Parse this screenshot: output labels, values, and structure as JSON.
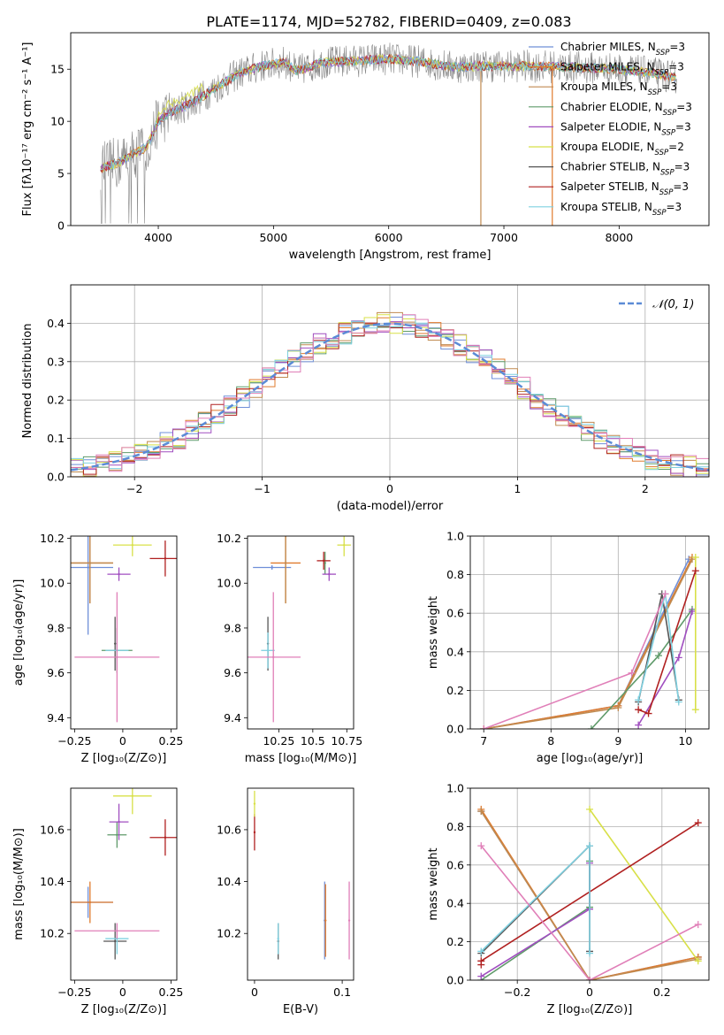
{
  "figure": {
    "title": "PLATE=1174, MJD=52782, FIBERID=0409, z=0.083"
  },
  "colors": {
    "chabrier_miles": "#6f8fd8",
    "salpeter_miles": "#e07b2e",
    "kroupa_miles": "#c08a50",
    "chabrier_elodie": "#5f9a6a",
    "salpeter_elodie": "#a04ec0",
    "kroupa_elodie": "#d8e048",
    "chabrier_stelib": "#555555",
    "salpeter_stelib": "#b02020",
    "kroupa_stelib": "#7fd0e0",
    "gaussian": "#5b8bd6",
    "pink": "#e07fb8"
  },
  "legend_labels": [
    {
      "key": "chabrier_miles",
      "text": "Chabrier MILES, N",
      "sub": "SSP",
      "suffix": "=3"
    },
    {
      "key": "salpeter_miles",
      "text": "Salpeter MILES, N",
      "sub": "SSP",
      "suffix": "=3"
    },
    {
      "key": "kroupa_miles",
      "text": "Kroupa MILES, N",
      "sub": "SSP",
      "suffix": "=3"
    },
    {
      "key": "chabrier_elodie",
      "text": "Chabrier ELODIE, N",
      "sub": "SSP",
      "suffix": "=3"
    },
    {
      "key": "salpeter_elodie",
      "text": "Salpeter ELODIE, N",
      "sub": "SSP",
      "suffix": "=3"
    },
    {
      "key": "kroupa_elodie",
      "text": "Kroupa ELODIE, N",
      "sub": "SSP",
      "suffix": "=2"
    },
    {
      "key": "chabrier_stelib",
      "text": "Chabrier STELIB, N",
      "sub": "SSP",
      "suffix": "=3"
    },
    {
      "key": "salpeter_stelib",
      "text": "Salpeter STELIB, N",
      "sub": "SSP",
      "suffix": "=3"
    },
    {
      "key": "kroupa_stelib",
      "text": "Kroupa STELIB, N",
      "sub": "SSP",
      "suffix": "=3"
    }
  ],
  "chart_data": [
    {
      "id": "spectrum",
      "type": "line",
      "xlabel": "wavelength [Angstrom, rest frame]",
      "ylabel": "Flux [fλ10⁻¹⁷ erg cm⁻² s⁻¹ A⁻¹]",
      "xlim": [
        3240,
        8780
      ],
      "ylim": [
        0,
        18.5
      ],
      "xticks": [
        4000,
        5000,
        6000,
        7000,
        8000
      ],
      "yticks": [
        0,
        5,
        10,
        15
      ],
      "continuum": [
        [
          3500,
          5.5
        ],
        [
          3650,
          6.0
        ],
        [
          3800,
          7.0
        ],
        [
          3900,
          7.5
        ],
        [
          4000,
          10.0
        ],
        [
          4100,
          10.8
        ],
        [
          4300,
          11.8
        ],
        [
          4500,
          13.2
        ],
        [
          4700,
          14.6
        ],
        [
          4900,
          15.3
        ],
        [
          5100,
          15.7
        ],
        [
          5200,
          14.8
        ],
        [
          5400,
          15.6
        ],
        [
          5700,
          15.8
        ],
        [
          6000,
          16.0
        ],
        [
          6300,
          15.7
        ],
        [
          6560,
          15.2
        ],
        [
          6800,
          15.3
        ],
        [
          7200,
          15.3
        ],
        [
          7600,
          15.2
        ],
        [
          8000,
          15.0
        ],
        [
          8300,
          14.6
        ],
        [
          8500,
          14.2
        ]
      ]
    },
    {
      "id": "residuals",
      "type": "step-histogram",
      "xlabel": "(data-model)/error",
      "ylabel": "Normed distribution",
      "xlim": [
        -2.5,
        2.5
      ],
      "ylim": [
        0,
        0.5
      ],
      "xticks": [
        -2,
        -1,
        0,
        1,
        2
      ],
      "yticks": [
        0.0,
        0.1,
        0.2,
        0.3,
        0.4
      ],
      "legend": "𝒩(0, 1)",
      "gaussian": {
        "mu": 0,
        "sigma": 1
      }
    },
    {
      "id": "age_vs_Z",
      "type": "errorbar",
      "xlabel": "Z [log₁₀(Z/Z⊙)]",
      "ylabel": "age  [log₁₀(age/yr)]",
      "xlim": [
        -0.27,
        0.28
      ],
      "ylim": [
        9.35,
        10.21
      ],
      "xticks": [
        -0.25,
        0.0,
        0.25
      ],
      "yticks": [
        9.4,
        9.6,
        9.8,
        10.0,
        10.2
      ],
      "points": [
        {
          "c": "chabrier_miles",
          "x": -0.18,
          "y": 10.07,
          "xerr": 0.13,
          "yerr": 0.3
        },
        {
          "c": "salpeter_miles",
          "x": -0.17,
          "y": 10.09,
          "xerr": 0.12,
          "yerr": 0.18
        },
        {
          "c": "kroupa_miles",
          "x": -0.17,
          "y": 10.09,
          "xerr": 0.12,
          "yerr": 0.18
        },
        {
          "c": "chabrier_elodie",
          "x": -0.03,
          "y": 9.7,
          "xerr": 0.08,
          "yerr": 0.1
        },
        {
          "c": "salpeter_elodie",
          "x": -0.02,
          "y": 10.04,
          "xerr": 0.06,
          "yerr": 0.03
        },
        {
          "c": "kroupa_elodie",
          "x": 0.05,
          "y": 10.17,
          "xerr": 0.1,
          "yerr": 0.05
        },
        {
          "c": "chabrier_stelib",
          "x": -0.04,
          "y": 9.73,
          "xerr": 0.0,
          "yerr": 0.12
        },
        {
          "c": "salpeter_stelib",
          "x": 0.22,
          "y": 10.11,
          "xerr": 0.08,
          "yerr": 0.08
        },
        {
          "c": "kroupa_stelib",
          "x": -0.03,
          "y": 9.7,
          "xerr": 0.06,
          "yerr": 0.08
        },
        {
          "c": "pink",
          "x": -0.03,
          "y": 9.67,
          "xerr": 0.22,
          "yerr": 0.29
        }
      ]
    },
    {
      "id": "age_vs_mass",
      "type": "errorbar",
      "xlabel": "mass [log₁₀(M/M⊙)]",
      "ylabel": "",
      "xlim": [
        10.02,
        10.8
      ],
      "ylim": [
        9.35,
        10.21
      ],
      "xticks": [
        10.25,
        10.5,
        10.75
      ],
      "yticks": [
        9.4,
        9.6,
        9.8,
        10.0,
        10.2
      ],
      "points": [
        {
          "c": "chabrier_miles",
          "x": 10.2,
          "y": 10.07,
          "xerr": 0.14,
          "yerr": 0.01
        },
        {
          "c": "salpeter_miles",
          "x": 10.3,
          "y": 10.09,
          "xerr": 0.11,
          "yerr": 0.18
        },
        {
          "c": "kroupa_miles",
          "x": 10.3,
          "y": 10.09,
          "xerr": 0.0,
          "yerr": 0.18
        },
        {
          "c": "chabrier_elodie",
          "x": 10.59,
          "y": 10.09,
          "xerr": 0.0,
          "yerr": 0.05
        },
        {
          "c": "salpeter_elodie",
          "x": 10.62,
          "y": 10.04,
          "xerr": 0.05,
          "yerr": 0.03
        },
        {
          "c": "kroupa_elodie",
          "x": 10.73,
          "y": 10.17,
          "xerr": 0.05,
          "yerr": 0.05
        },
        {
          "c": "salpeter_stelib",
          "x": 10.58,
          "y": 10.1,
          "xerr": 0.05,
          "yerr": 0.04
        },
        {
          "c": "chabrier_stelib",
          "x": 10.17,
          "y": 9.73,
          "xerr": 0.0,
          "yerr": 0.12
        },
        {
          "c": "kroupa_stelib",
          "x": 10.17,
          "y": 9.7,
          "xerr": 0.05,
          "yerr": 0.08
        },
        {
          "c": "pink",
          "x": 10.21,
          "y": 9.67,
          "xerr": 0.2,
          "yerr": 0.29
        }
      ]
    },
    {
      "id": "weight_vs_age",
      "type": "line",
      "xlabel": "age  [log₁₀(age/yr)]",
      "ylabel": "mass weight",
      "xlim": [
        6.8,
        10.35
      ],
      "ylim": [
        0,
        1.0
      ],
      "xticks": [
        7,
        8,
        9,
        10
      ],
      "yticks": [
        0.0,
        0.2,
        0.4,
        0.6,
        0.8,
        1.0
      ],
      "series": [
        {
          "c": "chabrier_miles",
          "points": [
            [
              7.0,
              0.0
            ],
            [
              9.0,
              0.12
            ],
            [
              10.05,
              0.88
            ]
          ]
        },
        {
          "c": "salpeter_miles",
          "points": [
            [
              7.0,
              0.0
            ],
            [
              9.0,
              0.12
            ],
            [
              10.1,
              0.89
            ]
          ]
        },
        {
          "c": "kroupa_miles",
          "points": [
            [
              7.0,
              0.0
            ],
            [
              9.0,
              0.11
            ],
            [
              10.1,
              0.88
            ]
          ]
        },
        {
          "c": "chabrier_elodie",
          "points": [
            [
              8.6,
              0.0
            ],
            [
              9.6,
              0.38
            ],
            [
              10.1,
              0.62
            ]
          ]
        },
        {
          "c": "salpeter_elodie",
          "points": [
            [
              9.3,
              0.02
            ],
            [
              9.9,
              0.37
            ],
            [
              10.1,
              0.61
            ]
          ]
        },
        {
          "c": "kroupa_elodie",
          "points": [
            [
              10.15,
              0.1
            ],
            [
              10.15,
              0.89
            ]
          ]
        },
        {
          "c": "chabrier_stelib",
          "points": [
            [
              9.3,
              0.14
            ],
            [
              9.65,
              0.7
            ],
            [
              9.9,
              0.15
            ]
          ]
        },
        {
          "c": "salpeter_stelib",
          "points": [
            [
              9.3,
              0.1
            ],
            [
              9.45,
              0.08
            ],
            [
              10.15,
              0.82
            ]
          ]
        },
        {
          "c": "kroupa_stelib",
          "points": [
            [
              9.3,
              0.15
            ],
            [
              9.7,
              0.7
            ],
            [
              9.9,
              0.14
            ]
          ]
        },
        {
          "c": "pink",
          "points": [
            [
              7.0,
              0.0
            ],
            [
              9.2,
              0.29
            ],
            [
              9.7,
              0.7
            ]
          ]
        }
      ]
    },
    {
      "id": "mass_vs_Z",
      "type": "errorbar",
      "xlabel": "Z [log₁₀(Z/Z⊙)]",
      "ylabel": "mass [log₁₀(M/M⊙)]",
      "xlim": [
        -0.27,
        0.28
      ],
      "ylim": [
        10.02,
        10.76
      ],
      "xticks": [
        -0.25,
        0.0,
        0.25
      ],
      "yticks": [
        10.2,
        10.4,
        10.6
      ],
      "points": [
        {
          "c": "chabrier_miles",
          "x": -0.18,
          "y": 10.32,
          "xerr": 0.13,
          "yerr": 0.06
        },
        {
          "c": "salpeter_miles",
          "x": -0.17,
          "y": 10.32,
          "xerr": 0.12,
          "yerr": 0.08
        },
        {
          "c": "chabrier_elodie",
          "x": -0.03,
          "y": 10.58,
          "xerr": 0.05,
          "yerr": 0.05
        },
        {
          "c": "salpeter_elodie",
          "x": -0.02,
          "y": 10.63,
          "xerr": 0.05,
          "yerr": 0.07
        },
        {
          "c": "kroupa_elodie",
          "x": 0.05,
          "y": 10.73,
          "xerr": 0.1,
          "yerr": 0.07
        },
        {
          "c": "salpeter_stelib",
          "x": 0.22,
          "y": 10.57,
          "xerr": 0.08,
          "yerr": 0.07
        },
        {
          "c": "chabrier_stelib",
          "x": -0.04,
          "y": 10.17,
          "xerr": 0.06,
          "yerr": 0.07
        },
        {
          "c": "kroupa_stelib",
          "x": -0.03,
          "y": 10.18,
          "xerr": 0.06,
          "yerr": 0.06
        },
        {
          "c": "pink",
          "x": -0.03,
          "y": 10.21,
          "xerr": 0.22,
          "yerr": 0.03
        }
      ]
    },
    {
      "id": "mass_vs_ebv",
      "type": "errorbar",
      "xlabel": "E(B-V)",
      "ylabel": "",
      "xlim": [
        -0.008,
        0.113
      ],
      "ylim": [
        10.02,
        10.76
      ],
      "xticks": [
        0.0,
        0.1
      ],
      "yticks": [
        10.2,
        10.4,
        10.6
      ],
      "points": [
        {
          "c": "salpeter_stelib",
          "x": 0.0,
          "y": 10.59,
          "xerr": 0.0,
          "yerr": 0.07
        },
        {
          "c": "kroupa_elodie",
          "x": 0.0,
          "y": 10.7,
          "xerr": 0.0,
          "yerr": 0.05
        },
        {
          "c": "chabrier_stelib",
          "x": 0.027,
          "y": 10.17,
          "xerr": 0.0,
          "yerr": 0.07
        },
        {
          "c": "kroupa_stelib",
          "x": 0.027,
          "y": 10.18,
          "xerr": 0.0,
          "yerr": 0.06
        },
        {
          "c": "chabrier_miles",
          "x": 0.08,
          "y": 10.25,
          "xerr": 0.0,
          "yerr": 0.15
        },
        {
          "c": "salpeter_miles",
          "x": 0.081,
          "y": 10.25,
          "xerr": 0.0,
          "yerr": 0.14
        },
        {
          "c": "pink",
          "x": 0.108,
          "y": 10.25,
          "xerr": 0.0,
          "yerr": 0.15
        }
      ]
    },
    {
      "id": "weight_vs_Z",
      "type": "line",
      "xlabel": "Z [log₁₀(Z/Z⊙)]",
      "ylabel": "mass weight",
      "xlim": [
        -0.33,
        0.33
      ],
      "ylim": [
        0,
        1.0
      ],
      "xticks": [
        -0.2,
        0.0,
        0.2
      ],
      "yticks": [
        0.0,
        0.2,
        0.4,
        0.6,
        0.8,
        1.0
      ],
      "series": [
        {
          "c": "chabrier_miles",
          "points": [
            [
              -0.3,
              0.88
            ],
            [
              0.0,
              0.0
            ],
            [
              0.3,
              0.12
            ]
          ]
        },
        {
          "c": "salpeter_miles",
          "points": [
            [
              -0.3,
              0.89
            ],
            [
              0.0,
              0.0
            ],
            [
              0.3,
              0.12
            ]
          ]
        },
        {
          "c": "kroupa_miles",
          "points": [
            [
              -0.3,
              0.88
            ],
            [
              0.0,
              0.0
            ],
            [
              0.3,
              0.11
            ]
          ]
        },
        {
          "c": "chabrier_elodie",
          "points": [
            [
              -0.3,
              0.0
            ],
            [
              0.0,
              0.38
            ],
            [
              0.0,
              0.62
            ]
          ]
        },
        {
          "c": "salpeter_elodie",
          "points": [
            [
              -0.3,
              0.02
            ],
            [
              0.0,
              0.37
            ],
            [
              0.0,
              0.61
            ]
          ]
        },
        {
          "c": "kroupa_elodie",
          "points": [
            [
              0.0,
              0.89
            ],
            [
              0.3,
              0.1
            ]
          ]
        },
        {
          "c": "chabrier_stelib",
          "points": [
            [
              -0.3,
              0.14
            ],
            [
              0.0,
              0.7
            ],
            [
              0.0,
              0.15
            ]
          ]
        },
        {
          "c": "salpeter_stelib",
          "points": [
            [
              -0.3,
              0.08
            ],
            [
              -0.3,
              0.1
            ],
            [
              0.3,
              0.82
            ]
          ]
        },
        {
          "c": "kroupa_stelib",
          "points": [
            [
              -0.3,
              0.15
            ],
            [
              0.0,
              0.7
            ],
            [
              0.0,
              0.14
            ]
          ]
        },
        {
          "c": "pink",
          "points": [
            [
              -0.3,
              0.7
            ],
            [
              0.0,
              0.0
            ],
            [
              0.3,
              0.29
            ]
          ]
        }
      ]
    }
  ]
}
